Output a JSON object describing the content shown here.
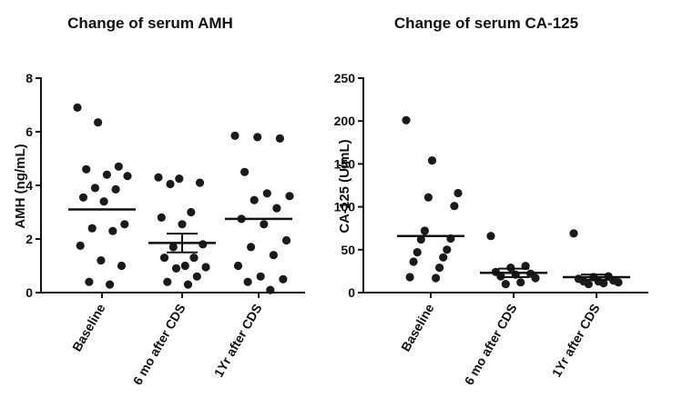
{
  "chart_data": [
    {
      "type": "scatter",
      "title": "Change of  serum AMH",
      "ylabel": "AMH  (ng/mL)",
      "xlabel": "",
      "ylim": [
        0,
        8
      ],
      "yticks": [
        0,
        2,
        4,
        6,
        8
      ],
      "categories": [
        "Baseline",
        "6 mo after CDS",
        "1Yr after CDS"
      ],
      "groups": [
        {
          "category": "Baseline",
          "mean": 3.1,
          "sem": null,
          "values": [
            6.9,
            6.35,
            4.7,
            4.6,
            4.4,
            4.35,
            3.9,
            3.85,
            3.55,
            3.4,
            2.55,
            2.4,
            2.3,
            1.75,
            1.2,
            1.0,
            0.4,
            0.3
          ]
        },
        {
          "category": "6 mo after CDS",
          "mean": 1.85,
          "sem": 0.35,
          "values": [
            4.3,
            4.25,
            4.1,
            4.05,
            3.0,
            2.8,
            2.55,
            1.8,
            1.7,
            1.3,
            1.3,
            1.0,
            0.95,
            0.9,
            0.6,
            0.4,
            0.3
          ]
        },
        {
          "category": "1Yr after CDS",
          "mean": 2.75,
          "sem": null,
          "values": [
            5.85,
            5.8,
            5.75,
            4.5,
            3.7,
            3.6,
            3.45,
            3.15,
            2.75,
            2.55,
            1.95,
            1.7,
            1.4,
            1.0,
            0.6,
            0.5,
            0.4,
            0.1
          ]
        }
      ]
    },
    {
      "type": "scatter",
      "title": "Change of  serum CA-125",
      "ylabel": "CA-125  (U/mL)",
      "xlabel": "",
      "ylim": [
        0,
        250
      ],
      "yticks": [
        0,
        50,
        100,
        150,
        200,
        250
      ],
      "categories": [
        "Baseline",
        "6 mo after CDS",
        "1Yr after CDS"
      ],
      "groups": [
        {
          "category": "Baseline",
          "mean": 66,
          "sem": null,
          "values": [
            201,
            154,
            116,
            111,
            101,
            72,
            63,
            62,
            50,
            47,
            41,
            36,
            29,
            18,
            17
          ]
        },
        {
          "category": "6 mo after CDS",
          "mean": 23,
          "sem": 5,
          "values": [
            66,
            31,
            29,
            24,
            22,
            21,
            19,
            17,
            12,
            10
          ]
        },
        {
          "category": "1Yr after CDS",
          "mean": 18,
          "sem": 3,
          "values": [
            69,
            19,
            18,
            16,
            14,
            13,
            13,
            12,
            11,
            10
          ]
        }
      ]
    }
  ]
}
